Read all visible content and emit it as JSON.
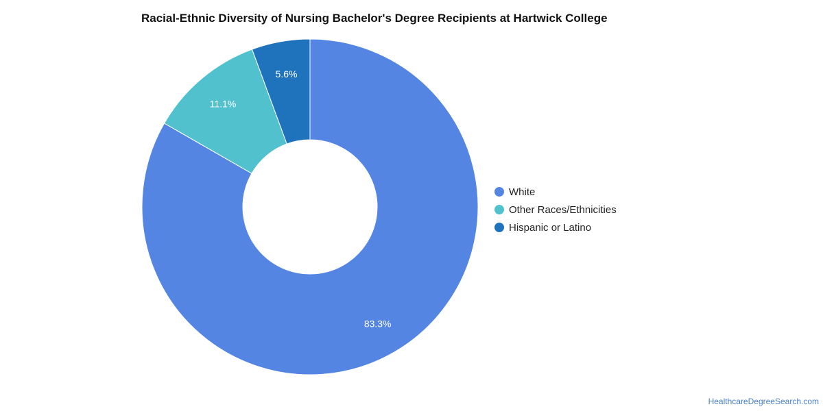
{
  "chart_data": {
    "type": "pie",
    "title": "Racial-Ethnic Diversity of Nursing Bachelor's Degree Recipients at Hartwick College",
    "donut": true,
    "legend_position": "right",
    "slices": [
      {
        "label": "White",
        "value": 83.3,
        "value_label": "83.3%",
        "color": "#5485e3"
      },
      {
        "label": "Other Races/Ethnicities",
        "value": 11.1,
        "value_label": "11.1%",
        "color": "#51c2cd"
      },
      {
        "label": "Hispanic or Latino",
        "value": 5.6,
        "value_label": "5.6%",
        "color": "#1f73bd"
      }
    ]
  },
  "source": "HealthcareDegreeSearch.com"
}
